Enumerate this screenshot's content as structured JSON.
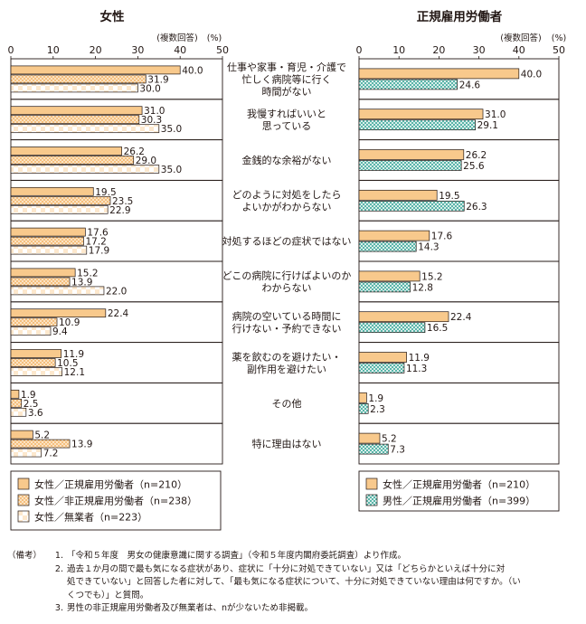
{
  "chart_data": [
    {
      "type": "bar",
      "orientation": "horizontal",
      "title": "女性",
      "note": "(複数回答)",
      "unit": "(%)",
      "xlim": [
        0,
        50
      ],
      "ticks": [
        0,
        10,
        20,
        30,
        40,
        50
      ],
      "categories": [
        "仕事や家事・育児・介護で忙しく病院等に行く時間がない",
        "我慢すればいいと思っている",
        "金銭的な余裕がない",
        "どのように対処をしたらよいかがわからない",
        "対処するほどの症状ではない",
        "どこの病院に行けばよいのかわからない",
        "病院の空いている時間に行けない・予約できない",
        "薬を飲むのを避けたい・副作用を避けたい",
        "その他",
        "特に理由はない"
      ],
      "series": [
        {
          "name": "女性／正規雇用労働者",
          "n": "n=210",
          "values": [
            40.0,
            31.0,
            26.2,
            19.5,
            17.6,
            15.2,
            22.4,
            11.9,
            1.9,
            5.2
          ]
        },
        {
          "name": "女性／非正規雇用労働者",
          "n": "n=238",
          "values": [
            31.9,
            30.3,
            29.0,
            23.5,
            17.2,
            13.9,
            10.9,
            10.5,
            2.5,
            13.9
          ]
        },
        {
          "name": "女性／無業者",
          "n": "n=223",
          "values": [
            30.0,
            35.0,
            35.0,
            22.9,
            17.9,
            22.0,
            9.4,
            12.1,
            3.6,
            7.2
          ]
        }
      ]
    },
    {
      "type": "bar",
      "orientation": "horizontal",
      "title": "正規雇用労働者",
      "note": "(複数回答)",
      "unit": "(%)",
      "xlim": [
        0,
        50
      ],
      "ticks": [
        0,
        10,
        20,
        30,
        40,
        50
      ],
      "categories": [
        "仕事や家事・育児・介護で忙しく病院等に行く時間がない",
        "我慢すればいいと思っている",
        "金銭的な余裕がない",
        "どのように対処をしたらよいかがわからない",
        "対処するほどの症状ではない",
        "どこの病院に行けばよいのかわからない",
        "病院の空いている時間に行けない・予約できない",
        "薬を飲むのを避けたい・副作用を避けたい",
        "その他",
        "特に理由はない"
      ],
      "series": [
        {
          "name": "女性／正規雇用労働者",
          "n": "n=210",
          "values": [
            40.0,
            31.0,
            26.2,
            19.5,
            17.6,
            15.2,
            22.4,
            11.9,
            1.9,
            5.2
          ]
        },
        {
          "name": "男性／正規雇用労働者",
          "n": "n=399",
          "values": [
            24.6,
            29.1,
            25.6,
            26.3,
            14.3,
            12.8,
            16.5,
            11.3,
            2.3,
            7.3
          ]
        }
      ]
    }
  ],
  "category_label_lines": [
    [
      "仕事や家事・育児・介護で",
      "忙しく病院等に行く",
      "時間がない"
    ],
    [
      "我慢すればいいと",
      "思っている"
    ],
    [
      "金銭的な余裕がない"
    ],
    [
      "どのように対処をしたら",
      "よいかがわからない"
    ],
    [
      "対処するほどの症状ではない"
    ],
    [
      "どこの病院に行けばよいのか",
      "わからない"
    ],
    [
      "病院の空いている時間に",
      "行けない・予約できない"
    ],
    [
      "薬を飲むのを避けたい・",
      "副作用を避けたい"
    ],
    [
      "その他"
    ],
    [
      "特に理由はない"
    ]
  ],
  "colors": {
    "female_regular": "#f8c98c",
    "female_nonregular_bg": "#fbe3c3",
    "female_nonregular_dot": "#f2a64c",
    "female_nonemployed_bg": "#fde8cd",
    "male_regular_bg": "#ffffff",
    "male_regular_check": "#3fa99b",
    "frame": "#231815"
  },
  "notes": {
    "label": "（備考）",
    "items": [
      {
        "num": "1.",
        "lines": [
          "「令和５年度　男女の健康意識に関する調査」（令和５年度内閣府委託調査）より作成。"
        ]
      },
      {
        "num": "2.",
        "lines": [
          "過去１か月の間で最も気になる症状があり、症状に「十分に対処できていない」又は「どちらかといえば十分に対",
          "処できていない」と回答した者に対して、「最も気になる症状について、十分に対処できていない理由は何ですか。（い",
          "くつでも）」と質問。"
        ]
      },
      {
        "num": "3.",
        "lines": [
          "男性の非正規雇用労働者及び無業者は、nが少ないため非掲載。"
        ]
      }
    ]
  }
}
